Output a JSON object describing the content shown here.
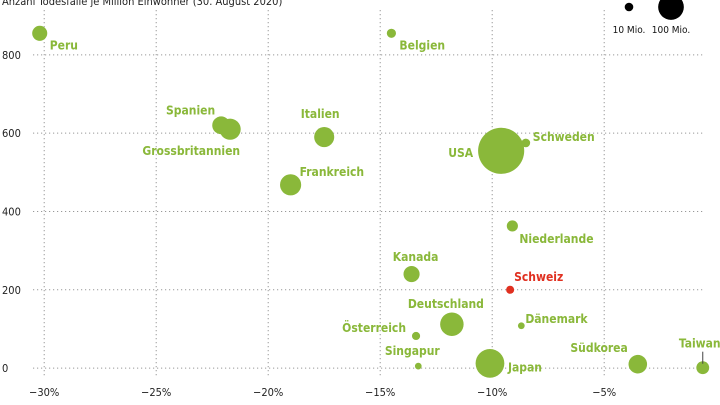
{
  "chart_data": {
    "type": "scatter",
    "title": "",
    "ylabel": "Anzahl Todesfälle je Million Einwohner (30. August 2020)",
    "xlabel": "",
    "xlim": [
      -30.5,
      -0.5
    ],
    "ylim": [
      -10,
      820
    ],
    "x_ticks": [
      -30,
      -25,
      -20,
      -15,
      -10,
      -5
    ],
    "x_tick_labels": [
      "−30%",
      "−25%",
      "−20%",
      "−15%",
      "−10%",
      "−5%"
    ],
    "y_ticks": [
      0,
      200,
      400,
      600,
      800
    ],
    "y_tick_labels": [
      "0",
      "200",
      "400",
      "600",
      "800"
    ],
    "grid": true,
    "colors": {
      "default": "#8ab83a",
      "highlight": "#e03020",
      "grid": "#999999"
    },
    "size_legend": [
      {
        "label": "10 Mio.",
        "population": 10
      },
      {
        "label": "100 Mio.",
        "population": 100
      }
    ],
    "points": [
      {
        "name": "Peru",
        "x": -30.2,
        "y": 855,
        "population": 33
      },
      {
        "name": "Belgien",
        "x": -14.5,
        "y": 855,
        "population": 11.5
      },
      {
        "name": "Spanien",
        "x": -22.1,
        "y": 620,
        "population": 47
      },
      {
        "name": "Grossbritannien",
        "x": -21.7,
        "y": 610,
        "population": 67
      },
      {
        "name": "Italien",
        "x": -17.5,
        "y": 590,
        "population": 60
      },
      {
        "name": "Frankreich",
        "x": -19,
        "y": 468,
        "population": 67
      },
      {
        "name": "Schweden",
        "x": -8.5,
        "y": 575,
        "population": 10.3
      },
      {
        "name": "USA",
        "x": -9.6,
        "y": 555,
        "population": 330
      },
      {
        "name": "Niederlande",
        "x": -9.1,
        "y": 363,
        "population": 17.4
      },
      {
        "name": "Kanada",
        "x": -13.6,
        "y": 240,
        "population": 38
      },
      {
        "name": "Schweiz",
        "x": -9.2,
        "y": 200,
        "population": 8.6,
        "highlight": true
      },
      {
        "name": "Deutschland",
        "x": -11.8,
        "y": 112,
        "population": 83
      },
      {
        "name": "Dänemark",
        "x": -8.7,
        "y": 108,
        "population": 5.8
      },
      {
        "name": "Österreich",
        "x": -13.4,
        "y": 82,
        "population": 8.9
      },
      {
        "name": "Singapur",
        "x": -13.3,
        "y": 5,
        "population": 5.7
      },
      {
        "name": "Japan",
        "x": -10.1,
        "y": 12,
        "population": 126
      },
      {
        "name": "Südkorea",
        "x": -3.5,
        "y": 10,
        "population": 51
      },
      {
        "name": "Taiwan",
        "x": -0.6,
        "y": 1,
        "population": 23.6
      }
    ]
  }
}
